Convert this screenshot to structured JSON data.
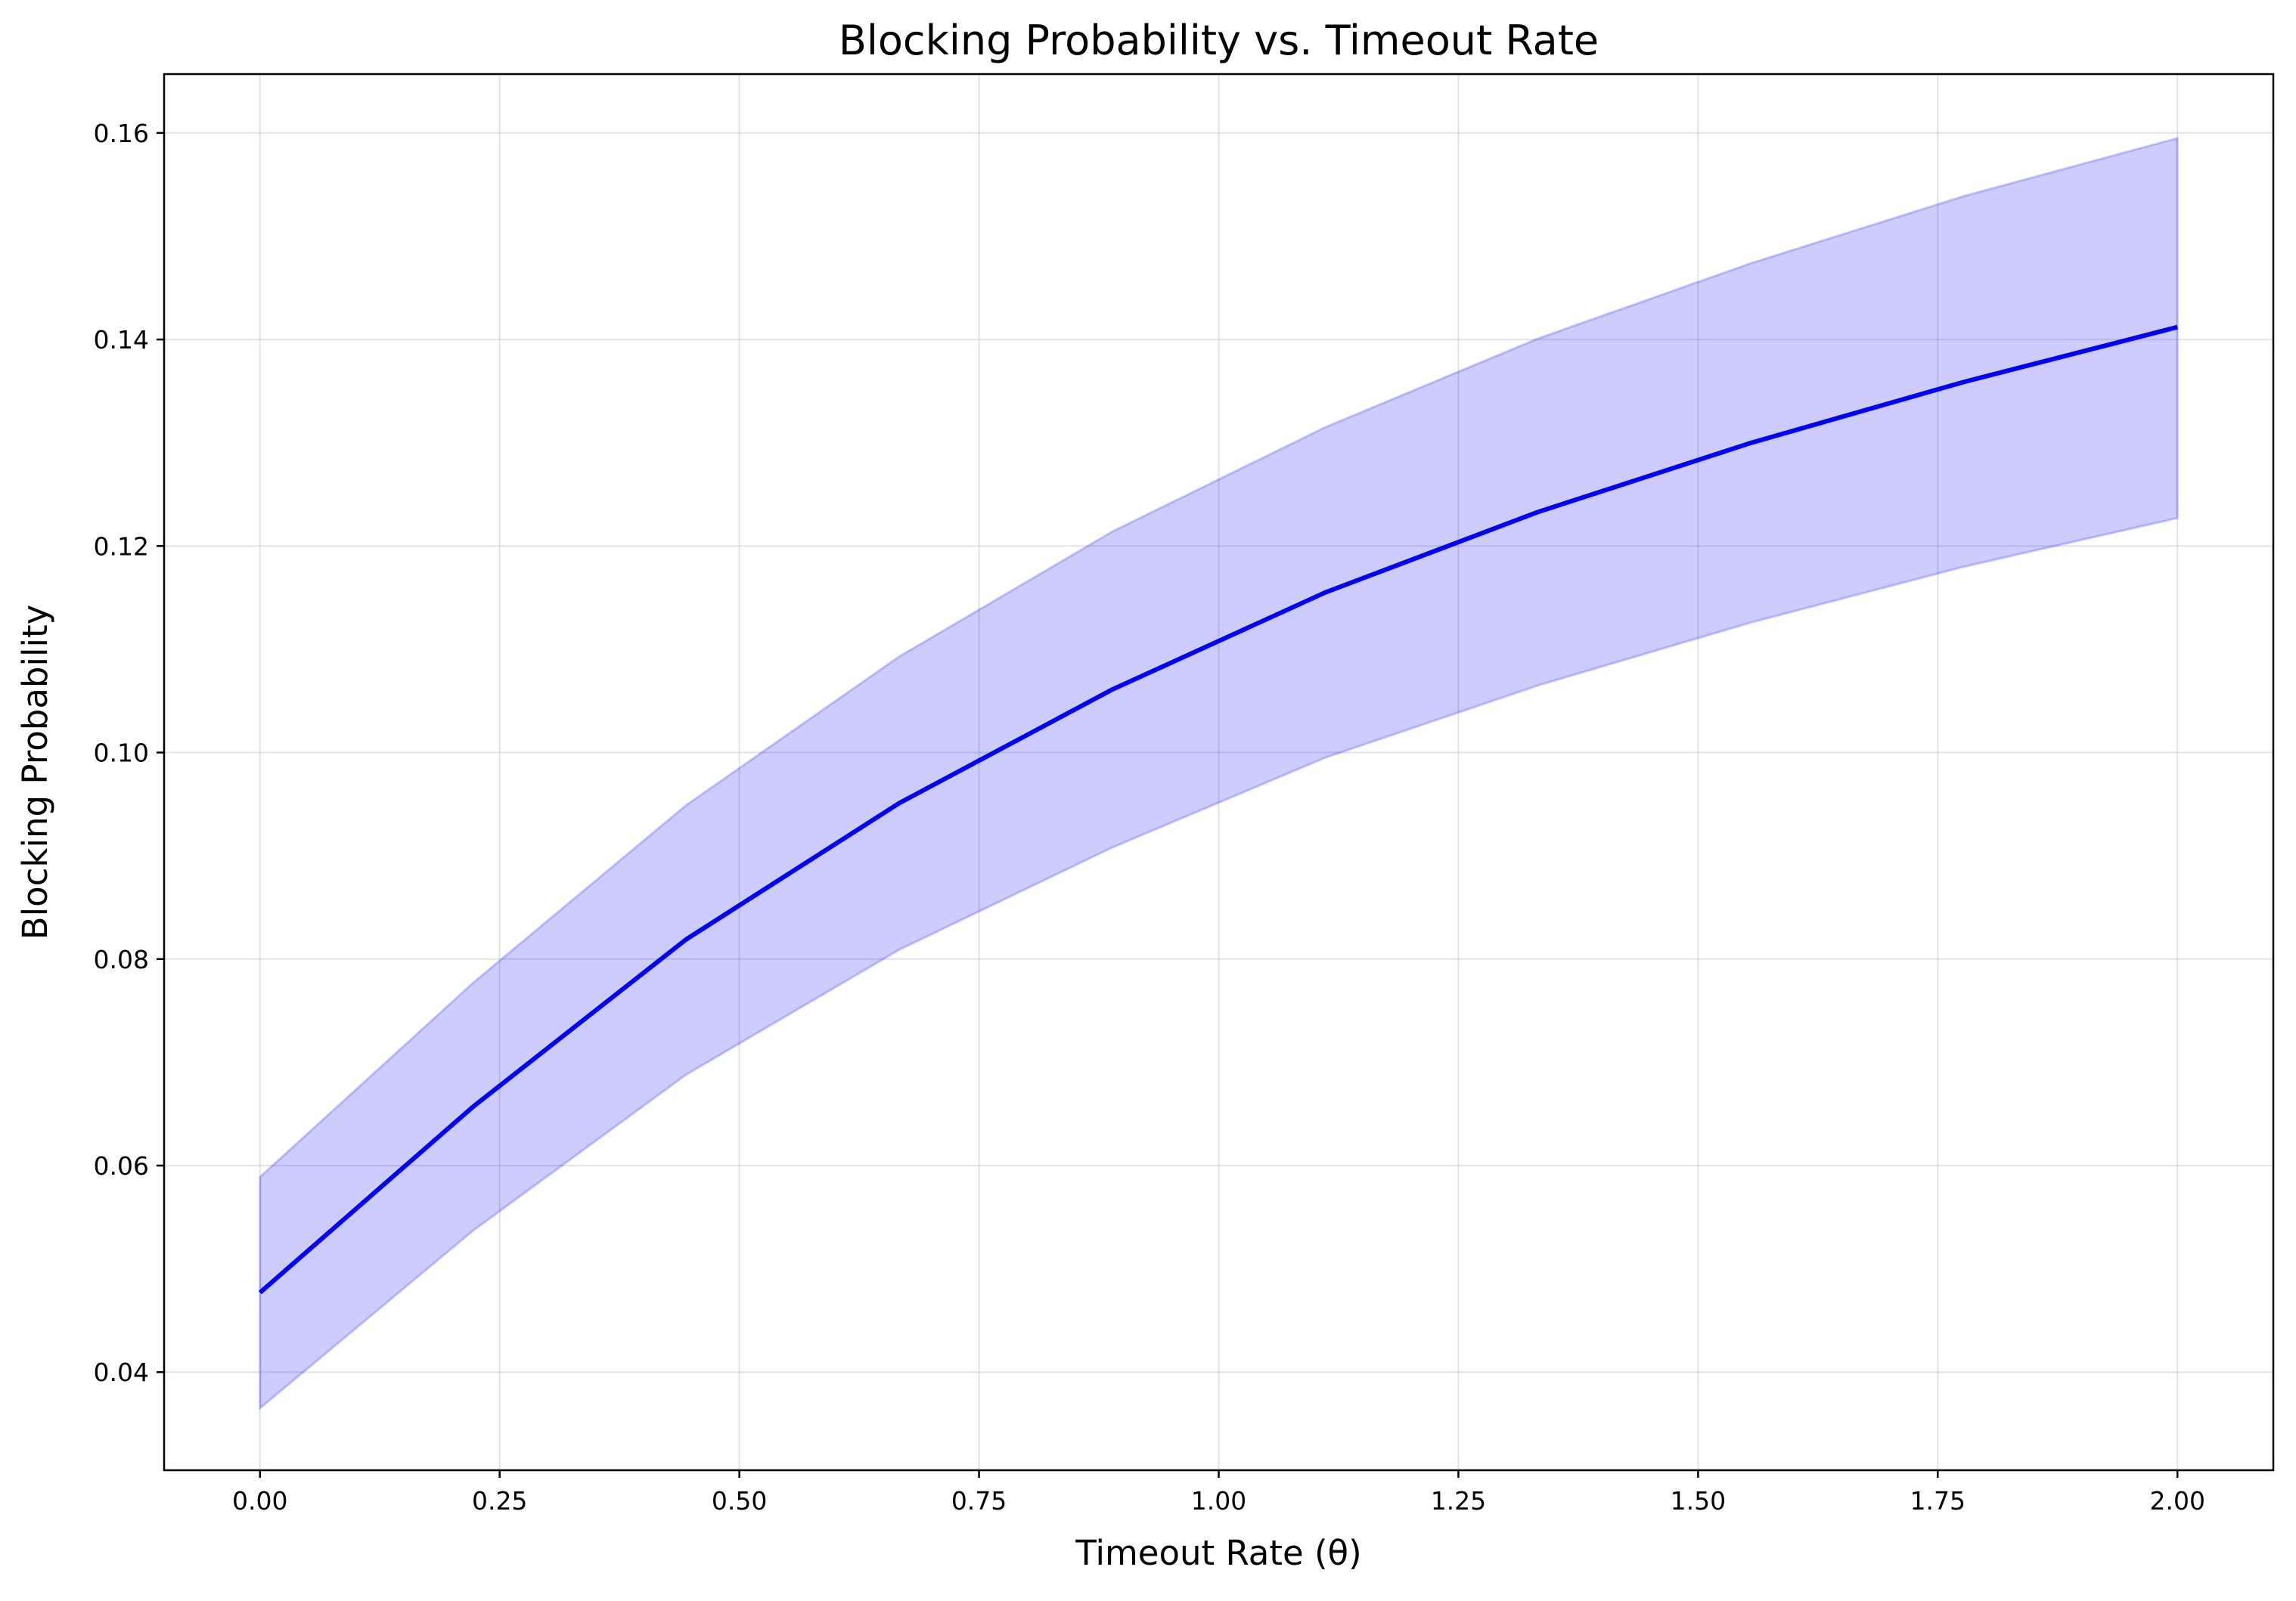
{
  "chart_data": {
    "type": "line",
    "title": "Blocking Probability vs. Timeout Rate",
    "xlabel": "Timeout Rate (θ)",
    "ylabel": "Blocking Probability",
    "xlim": [
      -0.1,
      2.1
    ],
    "ylim": [
      0.0305,
      0.1657
    ],
    "grid": true,
    "xticks": [
      0.0,
      0.25,
      0.5,
      0.75,
      1.0,
      1.25,
      1.5,
      1.75,
      2.0
    ],
    "xtick_labels": [
      "0.00",
      "0.25",
      "0.50",
      "0.75",
      "1.00",
      "1.25",
      "1.50",
      "1.75",
      "2.00"
    ],
    "yticks": [
      0.04,
      0.06,
      0.08,
      0.1,
      0.12,
      0.14,
      0.16
    ],
    "ytick_labels": [
      "0.04",
      "0.06",
      "0.08",
      "0.10",
      "0.12",
      "0.14",
      "0.16"
    ],
    "series": [
      {
        "name": "Blocking Probability",
        "color": "#0000ff",
        "x": [
          0.0,
          0.2222,
          0.4444,
          0.6667,
          0.8889,
          1.1111,
          1.3333,
          1.5556,
          1.7778,
          2.0
        ],
        "values": [
          0.0477,
          0.0657,
          0.0819,
          0.0951,
          0.1061,
          0.1155,
          0.1233,
          0.13,
          0.1359,
          0.1412
        ]
      }
    ],
    "confidence_band": {
      "color": "#0000ff",
      "x": [
        0.0,
        0.2222,
        0.4444,
        0.6667,
        0.8889,
        1.1111,
        1.3333,
        1.5556,
        1.7778,
        2.0
      ],
      "upper": [
        0.0589,
        0.0777,
        0.0949,
        0.1093,
        0.1214,
        0.1315,
        0.1401,
        0.1474,
        0.1539,
        0.1595
      ],
      "lower": [
        0.0365,
        0.0537,
        0.0688,
        0.0809,
        0.0908,
        0.0995,
        0.1065,
        0.1126,
        0.118,
        0.1227
      ]
    }
  }
}
